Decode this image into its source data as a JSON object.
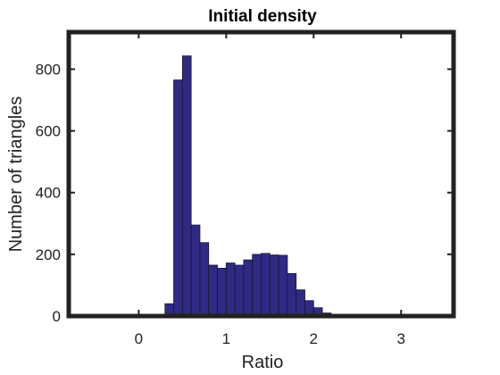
{
  "chart_data": {
    "type": "bar",
    "title": "Initial density",
    "xlabel": "Ratio",
    "ylabel": "Number of triangles",
    "xlim": [
      -0.8,
      3.6
    ],
    "ylim": [
      0,
      920
    ],
    "xticks": [
      0,
      1,
      2,
      3
    ],
    "yticks": [
      0,
      200,
      400,
      600,
      800
    ],
    "bin_width": 0.1,
    "bin_starts": [
      0.3,
      0.4,
      0.5,
      0.6,
      0.7,
      0.8,
      0.9,
      1.0,
      1.1,
      1.2,
      1.3,
      1.4,
      1.5,
      1.6,
      1.7,
      1.8,
      1.9,
      2.0,
      2.1,
      2.2,
      2.3,
      2.4,
      2.5,
      2.6,
      2.7,
      2.8,
      2.9,
      3.0
    ],
    "values": [
      40,
      765,
      843,
      295,
      238,
      165,
      155,
      172,
      165,
      182,
      200,
      203,
      198,
      197,
      138,
      85,
      50,
      27,
      10,
      3,
      2,
      2,
      1,
      1,
      1,
      1,
      1,
      1
    ],
    "bar_color": "#2e2a85",
    "edge_color": "#1a1a1a",
    "grid": false
  }
}
